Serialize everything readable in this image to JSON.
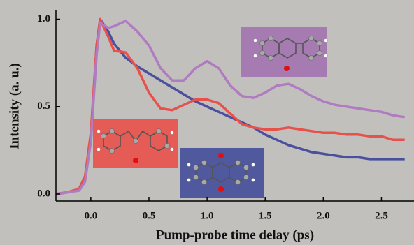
{
  "chart_data": {
    "type": "line",
    "xlabel": "Pump-probe time delay (ps)",
    "ylabel": "Intensity (a. u.)",
    "x": [
      -0.3,
      -0.2,
      -0.1,
      -0.05,
      0,
      0.05,
      0.08,
      0.15,
      0.2,
      0.3,
      0.4,
      0.5,
      0.6,
      0.7,
      0.8,
      0.9,
      1.0,
      1.1,
      1.2,
      1.3,
      1.4,
      1.5,
      1.6,
      1.7,
      1.8,
      1.9,
      2.0,
      2.1,
      2.2,
      2.3,
      2.4,
      2.5,
      2.6,
      2.7
    ],
    "series": [
      {
        "color": "#4a4f9e",
        "values": [
          0,
          0.01,
          0.03,
          0.1,
          0.3,
          0.85,
          1.0,
          0.93,
          0.86,
          0.78,
          0.73,
          0.69,
          0.65,
          0.61,
          0.57,
          0.53,
          0.5,
          0.47,
          0.44,
          0.41,
          0.38,
          0.34,
          0.31,
          0.28,
          0.26,
          0.24,
          0.23,
          0.22,
          0.21,
          0.21,
          0.2,
          0.2,
          0.2,
          0.2
        ]
      },
      {
        "color": "#e8504a",
        "values": [
          0,
          0.01,
          0.03,
          0.1,
          0.35,
          0.85,
          1.0,
          0.9,
          0.82,
          0.81,
          0.72,
          0.58,
          0.49,
          0.48,
          0.51,
          0.54,
          0.54,
          0.52,
          0.46,
          0.4,
          0.38,
          0.37,
          0.37,
          0.38,
          0.37,
          0.36,
          0.35,
          0.35,
          0.34,
          0.34,
          0.33,
          0.33,
          0.31,
          0.31
        ]
      },
      {
        "color": "#b07cc0",
        "values": [
          0,
          0.01,
          0.02,
          0.07,
          0.3,
          0.8,
          0.98,
          0.95,
          0.96,
          0.99,
          0.93,
          0.85,
          0.72,
          0.65,
          0.65,
          0.72,
          0.76,
          0.72,
          0.62,
          0.56,
          0.55,
          0.58,
          0.62,
          0.63,
          0.6,
          0.56,
          0.53,
          0.51,
          0.5,
          0.49,
          0.48,
          0.47,
          0.45,
          0.44
        ]
      }
    ],
    "xlim": [
      -0.3,
      2.78
    ],
    "ylim": [
      -0.04,
      1.05
    ],
    "xticks": [
      {
        "value": 0,
        "label": "0.0"
      },
      0.5,
      {
        "value": 1,
        "label": "1.0"
      },
      1.5,
      {
        "value": 2,
        "label": "2.0"
      },
      2.5
    ],
    "yticks": [
      {
        "value": 0,
        "label": "0.0"
      },
      0.5,
      {
        "value": 1,
        "label": "1.0"
      }
    ]
  }
}
